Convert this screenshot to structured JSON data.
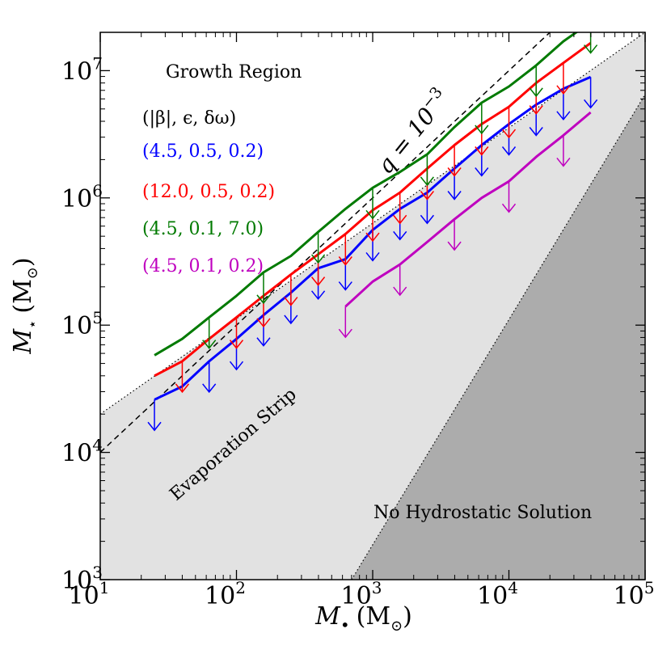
{
  "chart_data": {
    "type": "line",
    "xscale": "log",
    "yscale": "log",
    "xlim": [
      10,
      100000
    ],
    "ylim": [
      1000,
      20000000
    ],
    "xlabel_symbol": "M",
    "xlabel_sub": "•",
    "xlabel_unit": "(M",
    "xlabel_unit_sub": "⊙",
    "xlabel_close": ")",
    "ylabel_symbol": "M",
    "ylabel_sub": "⋆",
    "ylabel_unit": "(M",
    "ylabel_unit_sub": "⊙",
    "ylabel_close": ")",
    "xticks": [
      {
        "value": 10,
        "base": "10",
        "exp": "1"
      },
      {
        "value": 100,
        "base": "10",
        "exp": "2"
      },
      {
        "value": 1000,
        "base": "10",
        "exp": "3"
      },
      {
        "value": 10000,
        "base": "10",
        "exp": "4"
      },
      {
        "value": 100000,
        "base": "10",
        "exp": "5"
      }
    ],
    "yticks": [
      {
        "value": 1000,
        "base": "10",
        "exp": "3"
      },
      {
        "value": 10000,
        "base": "10",
        "exp": "4"
      },
      {
        "value": 100000,
        "base": "10",
        "exp": "5"
      },
      {
        "value": 1000000,
        "base": "10",
        "exp": "6"
      },
      {
        "value": 10000000,
        "base": "10",
        "exp": "7"
      }
    ],
    "regions": {
      "growth": "Growth Region",
      "evaporation": "Evaporation Strip",
      "no_solution": "No Hydrostatic Solution"
    },
    "reference_lines": {
      "q_line": {
        "label": "q = 10",
        "label_exp": "−3",
        "q": 0.001
      },
      "upper_dotted": {
        "x": [
          10,
          100000
        ],
        "y": [
          20000,
          20000000
        ]
      },
      "lower_dotted": {
        "x": [
          700,
          100000
        ],
        "y": [
          1000,
          6500000
        ]
      }
    },
    "legend_header": "(|β|, ϵ, δω)",
    "series": [
      {
        "name": "(4.5, 0.5, 0.2)",
        "color": "#0000ff",
        "x": [
          25,
          40,
          63,
          100,
          158,
          251,
          398,
          631,
          1000,
          1585,
          2512,
          3981,
          6310,
          10000,
          15849,
          25119,
          39811
        ],
        "y": [
          26000,
          33000,
          52000,
          78000,
          120000,
          180000,
          280000,
          330000,
          560000,
          820000,
          1100000,
          1700000,
          2600000,
          3800000,
          5400000,
          7200000,
          8900000
        ],
        "arrows": [
          25,
          63,
          100,
          158,
          251,
          398,
          631,
          1000,
          1585,
          2512,
          3981,
          6310,
          10000,
          15849,
          25119,
          39811
        ]
      },
      {
        "name": "(12.0, 0.5, 0.2)",
        "color": "#ff0000",
        "x": [
          25,
          40,
          63,
          100,
          158,
          251,
          398,
          631,
          1000,
          1585,
          2512,
          3981,
          6310,
          10000,
          15849,
          25119,
          39811
        ],
        "y": [
          40000,
          52000,
          78000,
          115000,
          170000,
          250000,
          360000,
          520000,
          800000,
          1100000,
          1700000,
          2600000,
          3800000,
          5200000,
          8000000,
          11500000,
          16500000
        ],
        "arrows": [
          40,
          100,
          158,
          251,
          398,
          631,
          1000,
          1585,
          2512,
          3981,
          6310,
          10000,
          15849,
          25119
        ]
      },
      {
        "name": "(4.5, 0.1, 7.0)",
        "color": "#007a00",
        "x": [
          25,
          40,
          63,
          100,
          158,
          251,
          398,
          631,
          1000,
          1585,
          2512,
          3981,
          6310,
          10000,
          15849,
          25119,
          39811
        ],
        "y": [
          58000,
          78000,
          115000,
          170000,
          260000,
          350000,
          540000,
          820000,
          1200000,
          1600000,
          2200000,
          3600000,
          5600000,
          7500000,
          11000000,
          17000000,
          24000000
        ],
        "arrows": [
          63,
          158,
          398,
          1000,
          2512,
          6310,
          15849,
          39811
        ]
      },
      {
        "name": "(4.5, 0.1, 0.2)",
        "color": "#bf00bf",
        "x": [
          631,
          1000,
          1585,
          2512,
          3981,
          6310,
          10000,
          15849,
          25119,
          39811
        ],
        "y": [
          140000,
          220000,
          300000,
          450000,
          680000,
          1000000,
          1350000,
          2100000,
          3100000,
          4700000
        ],
        "arrows": [
          631,
          1585,
          3981,
          10000,
          25119
        ]
      }
    ]
  }
}
